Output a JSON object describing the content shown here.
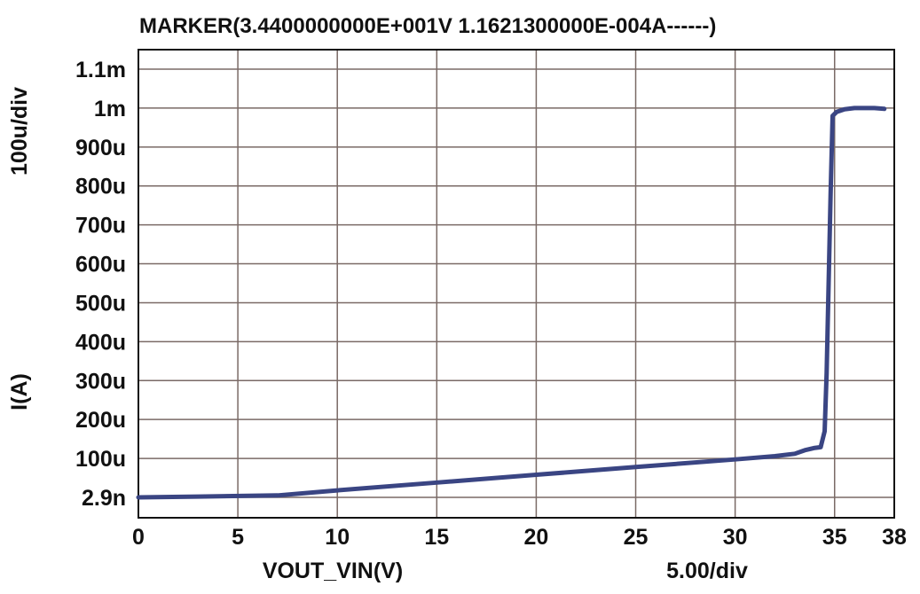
{
  "chart_data": {
    "type": "line",
    "title": "MARKER(3.4400000000E+001V 1.1621300000E-004A------)",
    "xlabel": "VOUT_VIN(V)",
    "x_div_label": "5.00/div",
    "ylabel": "I(A)",
    "y_div_label": "100u/div",
    "xlim": [
      0,
      38
    ],
    "ylim": [
      2.9e-09,
      0.0011
    ],
    "x_ticks": [
      0,
      5,
      10,
      15,
      20,
      25,
      30,
      35,
      38
    ],
    "x_tick_labels": [
      "0",
      "5",
      "10",
      "15",
      "20",
      "25",
      "30",
      "35",
      "38"
    ],
    "y_ticks": [
      2.9e-09,
      0.0001,
      0.0002,
      0.0003,
      0.0004,
      0.0005,
      0.0006,
      0.0007,
      0.0008,
      0.0009,
      0.001,
      0.0011
    ],
    "y_tick_labels": [
      "2.9n",
      "100u",
      "200u",
      "300u",
      "400u",
      "500u",
      "600u",
      "700u",
      "800u",
      "900u",
      "1m",
      "1.1m"
    ],
    "grid": true,
    "line_color": "#3a4583",
    "series": [
      {
        "x": [
          0,
          3,
          7,
          10,
          15,
          20,
          25,
          30,
          32,
          33,
          33.5,
          34,
          34.3,
          34.5,
          34.6,
          34.7,
          34.8,
          34.9,
          35.1,
          35.5,
          36,
          36.5,
          37,
          37.5
        ],
        "y": [
          2.9e-09,
          2e-06,
          5e-06,
          1.8e-05,
          3.8e-05,
          5.8e-05,
          7.8e-05,
          9.75e-05,
          0.000106,
          0.000112,
          0.000121,
          0.000127,
          0.000129,
          0.00017,
          0.00032,
          0.00055,
          0.00078,
          0.00098,
          0.00099,
          0.000997,
          0.001,
          0.001,
          0.001,
          0.000998
        ]
      }
    ],
    "marker": {
      "x": 34.4,
      "y": 0.000116213
    }
  }
}
